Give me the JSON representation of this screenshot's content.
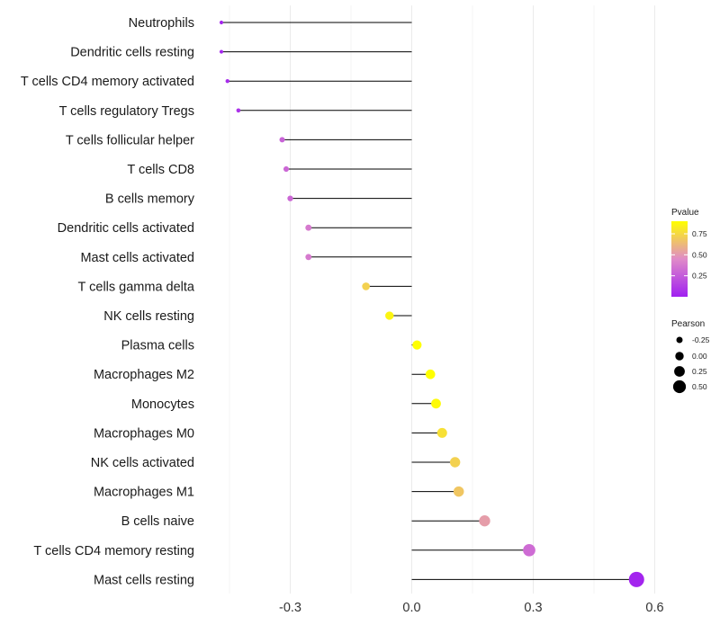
{
  "chart_data": {
    "type": "lollipop",
    "title": "",
    "xlabel": "",
    "ylabel": "",
    "xlim": [
      -0.45,
      0.62
    ],
    "x_ticks": [
      -0.3,
      0.0,
      0.3,
      0.6
    ],
    "x_tick_labels": [
      "-0.3",
      "0.0",
      "0.3",
      "0.6"
    ],
    "grid": true,
    "categories": [
      "Neutrophils",
      "Dendritic cells resting",
      "T cells CD4 memory activated",
      "T cells regulatory  Tregs",
      "T cells follicular helper",
      "T cells CD8",
      "B cells memory",
      "Dendritic cells activated",
      "Mast cells activated",
      "T cells gamma delta",
      "NK cells resting",
      "Plasma cells",
      "Macrophages M2",
      "Monocytes",
      "Macrophages M0",
      "NK cells activated",
      "Macrophages M1",
      "B cells naive",
      "T cells CD4 memory resting",
      "Mast cells resting"
    ],
    "values": [
      -0.47,
      -0.47,
      -0.455,
      -0.428,
      -0.32,
      -0.31,
      -0.3,
      -0.255,
      -0.255,
      -0.113,
      -0.055,
      0.013,
      0.046,
      0.06,
      0.075,
      0.107,
      0.116,
      0.18,
      0.29,
      0.555
    ],
    "pvalues": [
      0.03,
      0.03,
      0.05,
      0.08,
      0.28,
      0.3,
      0.3,
      0.38,
      0.38,
      0.72,
      0.86,
      0.98,
      0.95,
      0.88,
      0.78,
      0.72,
      0.68,
      0.52,
      0.32,
      0.02
    ],
    "legends": {
      "color": {
        "title": "Pvalue",
        "ticks": [
          0.25,
          0.5,
          0.75
        ],
        "tick_labels": [
          "0.25",
          "0.50",
          "0.75"
        ],
        "range": [
          0.0,
          0.9
        ],
        "colors": [
          "#a020f0",
          "#e08bc8",
          "#ffff00"
        ],
        "position": "right"
      },
      "size": {
        "title": "Pearson",
        "breaks": [
          -0.25,
          0.0,
          0.25,
          0.5
        ],
        "labels": [
          "-0.25",
          "0.00",
          "0.25",
          "0.50"
        ],
        "position": "right"
      }
    }
  }
}
